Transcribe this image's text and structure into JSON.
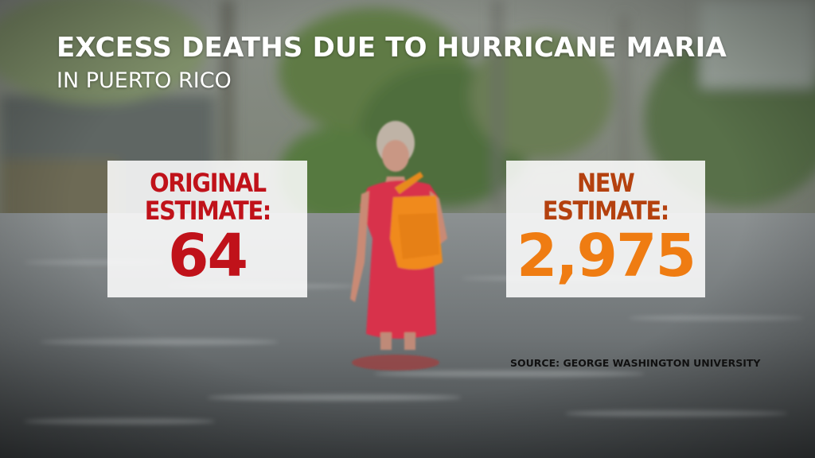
{
  "title": "EXCESS DEATHS DUE TO HURRICANE MARIA",
  "subtitle": "IN PUERTO RICO",
  "original": {
    "label_line1": "ORIGINAL",
    "label_line2": "ESTIMATE:",
    "value": "64"
  },
  "new": {
    "label_line1": "NEW",
    "label_line2": "ESTIMATE:",
    "value": "2,975"
  },
  "source": "SOURCE: GEORGE WASHINGTON UNIVERSITY",
  "colors": {
    "original_accent": "#c0121a",
    "new_label": "#b4410f",
    "new_value": "#ef7c12",
    "card_background": "#ffffff"
  }
}
